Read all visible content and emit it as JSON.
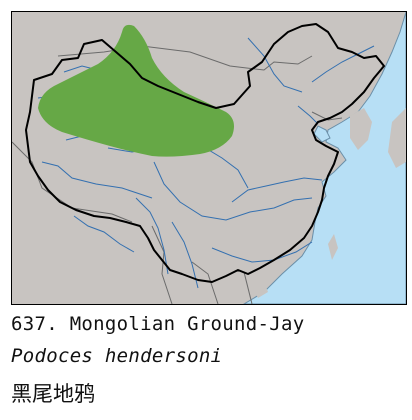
{
  "map": {
    "colors": {
      "land": "#c8c4c1",
      "sea": "#b7dff5",
      "range": "#66a846",
      "rivers": "#3470b0",
      "national_border": "#000000",
      "other_borders": "#6b6b6b"
    },
    "icons": [
      "range-map"
    ]
  },
  "caption": {
    "number_and_common_name": "637. Mongolian Ground-Jay",
    "scientific_name": "Podoces hendersoni",
    "chinese_name": "黑尾地鸦"
  }
}
